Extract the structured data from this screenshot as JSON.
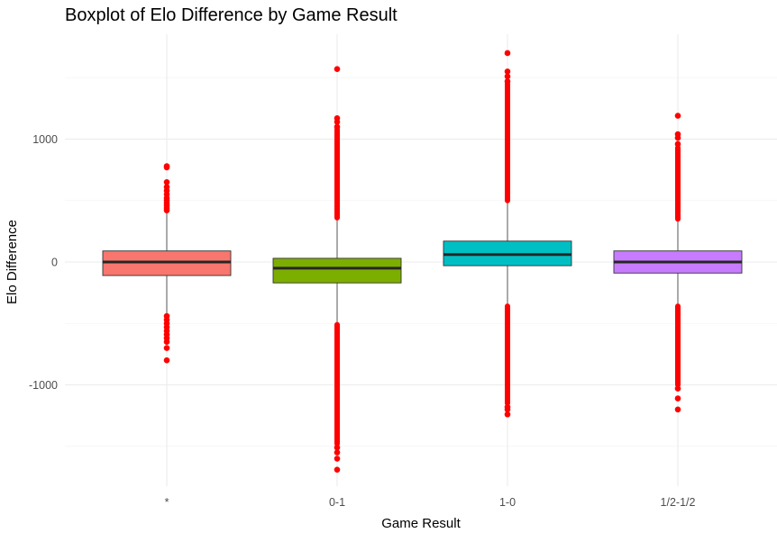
{
  "chart_data": {
    "type": "boxplot",
    "title": "Boxplot of Elo Difference by Game Result",
    "xlabel": "Game Result",
    "ylabel": "Elo Difference",
    "ylim": [
      -1800,
      1800
    ],
    "y_ticks": [
      {
        "value": 1000,
        "label": "1000"
      },
      {
        "value": 0,
        "label": "0"
      },
      {
        "value": -1000,
        "label": "-1000"
      }
    ],
    "y_minor_grid": [
      1500,
      500,
      -500,
      -1500
    ],
    "grid": true,
    "legend": "none",
    "categories": [
      "*",
      "0-1",
      "1-0",
      "1/2-1/2"
    ],
    "boxes": [
      {
        "category": "*",
        "color": "#F8766D",
        "q1": -110,
        "median": 0,
        "q3": 90,
        "whisker_low": -420,
        "whisker_high": 400,
        "outliers_high": [
          780,
          770,
          650,
          610,
          580,
          550,
          520,
          500,
          480,
          460,
          440,
          420
        ],
        "outliers_low": [
          -440,
          -470,
          -500,
          -530,
          -560,
          -590,
          -620,
          -650,
          -700,
          -800
        ]
      },
      {
        "category": "0-1",
        "color": "#7CAE00",
        "q1": -170,
        "median": -50,
        "q3": 30,
        "whisker_low": -490,
        "whisker_high": 340,
        "outliers_high": [
          1570,
          1170,
          1140,
          1100
        ],
        "outliers_high_band": [
          360,
          1080
        ],
        "outliers_low_band": [
          -1480,
          -510
        ],
        "outliers_low": [
          -1510,
          -1550,
          -1600,
          -1690
        ]
      },
      {
        "category": "1-0",
        "color": "#00BFC4",
        "q1": -30,
        "median": 60,
        "q3": 170,
        "whisker_low": -340,
        "whisker_high": 480,
        "outliers_high": [
          1700,
          1550,
          1510,
          1470
        ],
        "outliers_high_band": [
          500,
          1450
        ],
        "outliers_low_band": [
          -1150,
          -360
        ],
        "outliers_low": [
          -1180,
          -1200,
          -1240
        ]
      },
      {
        "category": "1/2-1/2",
        "color": "#C77CFF",
        "q1": -90,
        "median": 0,
        "q3": 90,
        "whisker_low": -340,
        "whisker_high": 330,
        "outliers_high": [
          1190,
          1040,
          1010,
          960
        ],
        "outliers_high_band": [
          350,
          930
        ],
        "outliers_low_band": [
          -1000,
          -360
        ],
        "outliers_low": [
          -1030,
          -1110,
          -1200
        ]
      }
    ]
  }
}
